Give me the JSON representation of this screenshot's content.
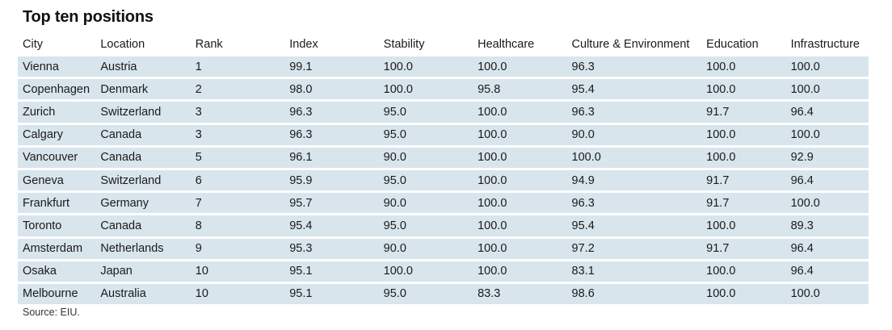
{
  "title": "Top ten positions",
  "source": "Source: EIU.",
  "chart_data": {
    "type": "table",
    "title": "Top ten positions",
    "columns": [
      "City",
      "Location",
      "Rank",
      "Index",
      "Stability",
      "Healthcare",
      "Culture & Environment",
      "Education",
      "Infrastructure"
    ],
    "rows": [
      [
        "Vienna",
        "Austria",
        "1",
        "99.1",
        "100.0",
        "100.0",
        "96.3",
        "100.0",
        "100.0"
      ],
      [
        "Copenhagen",
        "Denmark",
        "2",
        "98.0",
        "100.0",
        "95.8",
        "95.4",
        "100.0",
        "100.0"
      ],
      [
        "Zurich",
        "Switzerland",
        "3",
        "96.3",
        "95.0",
        "100.0",
        "96.3",
        "91.7",
        "96.4"
      ],
      [
        "Calgary",
        "Canada",
        "3",
        "96.3",
        "95.0",
        "100.0",
        "90.0",
        "100.0",
        "100.0"
      ],
      [
        "Vancouver",
        "Canada",
        "5",
        "96.1",
        "90.0",
        "100.0",
        "100.0",
        "100.0",
        "92.9"
      ],
      [
        "Geneva",
        "Switzerland",
        "6",
        "95.9",
        "95.0",
        "100.0",
        "94.9",
        "91.7",
        "96.4"
      ],
      [
        "Frankfurt",
        "Germany",
        "7",
        "95.7",
        "90.0",
        "100.0",
        "96.3",
        "91.7",
        "100.0"
      ],
      [
        "Toronto",
        "Canada",
        "8",
        "95.4",
        "95.0",
        "100.0",
        "95.4",
        "100.0",
        "89.3"
      ],
      [
        "Amsterdam",
        "Netherlands",
        "9",
        "95.3",
        "90.0",
        "100.0",
        "97.2",
        "91.7",
        "96.4"
      ],
      [
        "Osaka",
        "Japan",
        "10",
        "95.1",
        "100.0",
        "100.0",
        "83.1",
        "100.0",
        "96.4"
      ],
      [
        "Melbourne",
        "Australia",
        "10",
        "95.1",
        "95.0",
        "83.3",
        "98.6",
        "100.0",
        "100.0"
      ]
    ],
    "row_fill_color": "#d8e5ec"
  }
}
